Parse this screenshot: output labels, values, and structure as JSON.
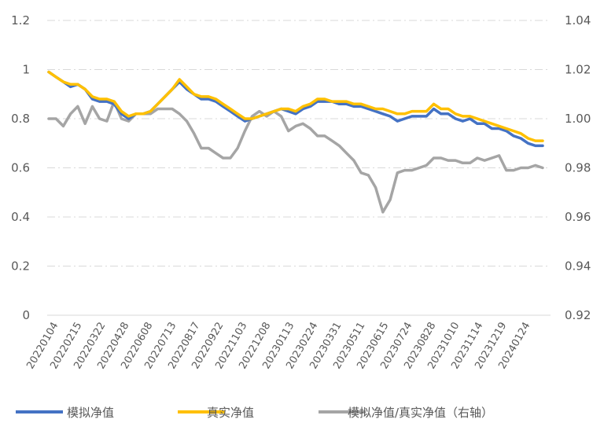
{
  "chart_data": {
    "type": "line",
    "title": "",
    "xlabel": "",
    "ylabel": "",
    "grid": true,
    "legend_position": "bottom",
    "x_tick_labels": [
      "20220104",
      "20220215",
      "20220322",
      "20220428",
      "20220608",
      "20220713",
      "20220817",
      "20220922",
      "20221103",
      "20221208",
      "20230113",
      "20230224",
      "20230331",
      "20230511",
      "20230615",
      "20230724",
      "20230828",
      "20231010",
      "20231114",
      "20231219",
      "20240124"
    ],
    "y_left": {
      "ylim": [
        0,
        1.2
      ],
      "ticks": [
        "0",
        "0.2",
        "0.4",
        "0.6",
        "0.8",
        "1",
        "1.2"
      ]
    },
    "y_right": {
      "ylim": [
        0.92,
        1.04
      ],
      "ticks": [
        "0.92",
        "0.94",
        "0.96",
        "0.98",
        "1.00",
        "1.02",
        "1.04"
      ]
    },
    "series": [
      {
        "name": "模拟净值",
        "axis": "left",
        "color": "#4472C4",
        "values": [
          0.99,
          0.97,
          0.95,
          0.93,
          0.94,
          0.92,
          0.88,
          0.87,
          0.87,
          0.86,
          0.82,
          0.8,
          0.82,
          0.82,
          0.83,
          0.86,
          0.89,
          0.92,
          0.95,
          0.92,
          0.9,
          0.88,
          0.88,
          0.87,
          0.85,
          0.83,
          0.81,
          0.79,
          0.8,
          0.81,
          0.82,
          0.83,
          0.84,
          0.83,
          0.82,
          0.84,
          0.85,
          0.87,
          0.87,
          0.87,
          0.86,
          0.86,
          0.85,
          0.85,
          0.84,
          0.83,
          0.82,
          0.81,
          0.79,
          0.8,
          0.81,
          0.81,
          0.81,
          0.84,
          0.82,
          0.82,
          0.8,
          0.79,
          0.8,
          0.78,
          0.78,
          0.76,
          0.76,
          0.75,
          0.73,
          0.72,
          0.7,
          0.69,
          0.69
        ]
      },
      {
        "name": "真实净值",
        "axis": "left",
        "color": "#FFC000",
        "values": [
          0.99,
          0.97,
          0.95,
          0.94,
          0.94,
          0.92,
          0.89,
          0.88,
          0.88,
          0.87,
          0.83,
          0.81,
          0.82,
          0.82,
          0.83,
          0.86,
          0.89,
          0.92,
          0.96,
          0.93,
          0.9,
          0.89,
          0.89,
          0.88,
          0.86,
          0.84,
          0.82,
          0.8,
          0.8,
          0.81,
          0.82,
          0.83,
          0.84,
          0.84,
          0.83,
          0.85,
          0.86,
          0.88,
          0.88,
          0.87,
          0.87,
          0.87,
          0.86,
          0.86,
          0.85,
          0.84,
          0.84,
          0.83,
          0.82,
          0.82,
          0.83,
          0.83,
          0.83,
          0.86,
          0.84,
          0.84,
          0.82,
          0.81,
          0.81,
          0.8,
          0.79,
          0.78,
          0.77,
          0.76,
          0.75,
          0.74,
          0.72,
          0.71,
          0.71
        ]
      },
      {
        "name": "模拟净值/真实净值（右轴）",
        "axis": "right",
        "color": "#A5A5A5",
        "values": [
          1.0,
          1.0,
          0.997,
          1.002,
          1.005,
          0.998,
          1.005,
          1.0,
          0.999,
          1.007,
          1.0,
          0.999,
          1.002,
          1.002,
          1.002,
          1.004,
          1.004,
          1.004,
          1.002,
          0.999,
          0.994,
          0.988,
          0.988,
          0.986,
          0.984,
          0.984,
          0.988,
          0.995,
          1.001,
          1.003,
          1.001,
          1.003,
          1.001,
          0.995,
          0.997,
          0.998,
          0.996,
          0.993,
          0.993,
          0.991,
          0.989,
          0.986,
          0.983,
          0.978,
          0.977,
          0.972,
          0.962,
          0.967,
          0.978,
          0.979,
          0.979,
          0.98,
          0.981,
          0.984,
          0.984,
          0.983,
          0.983,
          0.982,
          0.982,
          0.984,
          0.983,
          0.984,
          0.985,
          0.979,
          0.979,
          0.98,
          0.98,
          0.981,
          0.98
        ]
      }
    ]
  }
}
